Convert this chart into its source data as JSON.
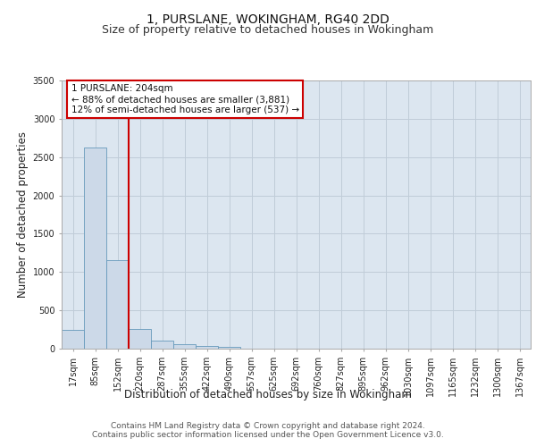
{
  "title": "1, PURSLANE, WOKINGHAM, RG40 2DD",
  "subtitle": "Size of property relative to detached houses in Wokingham",
  "xlabel": "Distribution of detached houses by size in Wokingham",
  "ylabel": "Number of detached properties",
  "footer_line1": "Contains HM Land Registry data © Crown copyright and database right 2024.",
  "footer_line2": "Contains public sector information licensed under the Open Government Licence v3.0.",
  "bin_labels": [
    "17sqm",
    "85sqm",
    "152sqm",
    "220sqm",
    "287sqm",
    "355sqm",
    "422sqm",
    "490sqm",
    "557sqm",
    "625sqm",
    "692sqm",
    "760sqm",
    "827sqm",
    "895sqm",
    "962sqm",
    "1030sqm",
    "1097sqm",
    "1165sqm",
    "1232sqm",
    "1300sqm",
    "1367sqm"
  ],
  "bar_values": [
    250,
    2630,
    1150,
    255,
    105,
    55,
    32,
    20,
    5,
    2,
    1,
    1,
    0,
    0,
    0,
    0,
    0,
    0,
    0,
    0,
    0
  ],
  "bar_color": "#ccd9e8",
  "bar_edge_color": "#6699bb",
  "property_line_color": "#cc0000",
  "annotation_text": "1 PURSLANE: 204sqm\n← 88% of detached houses are smaller (3,881)\n12% of semi-detached houses are larger (537) →",
  "annotation_box_color": "#ffffff",
  "annotation_box_edge": "#cc0000",
  "ylim": [
    0,
    3500
  ],
  "yticks": [
    0,
    500,
    1000,
    1500,
    2000,
    2500,
    3000,
    3500
  ],
  "plot_bg_color": "#dce6f0",
  "background_color": "#ffffff",
  "grid_color": "#c0ccd8",
  "title_fontsize": 10,
  "subtitle_fontsize": 9,
  "axis_label_fontsize": 8.5,
  "tick_fontsize": 7,
  "footer_fontsize": 6.5
}
